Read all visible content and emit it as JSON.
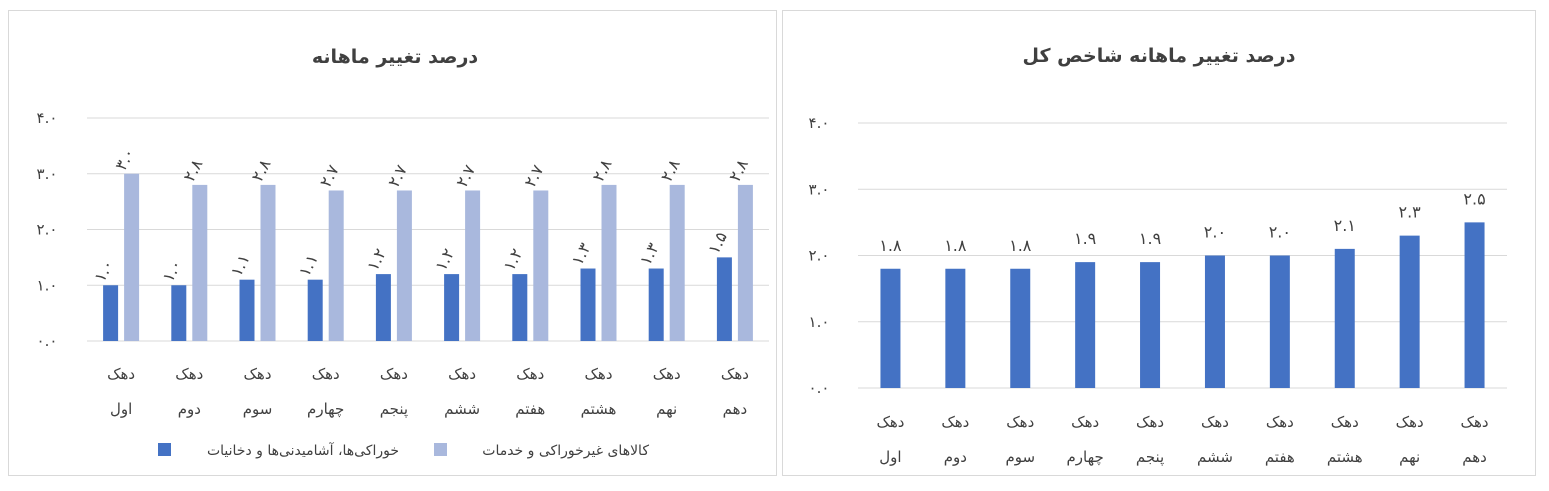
{
  "chart_data": [
    {
      "type": "bar",
      "title": "درصد تغییر ماهانه",
      "categories": [
        [
          "دهک",
          "اول"
        ],
        [
          "دهک",
          "دوم"
        ],
        [
          "دهک",
          "سوم"
        ],
        [
          "دهک",
          "چهارم"
        ],
        [
          "دهک",
          "پنجم"
        ],
        [
          "دهک",
          "ششم"
        ],
        [
          "دهک",
          "هفتم"
        ],
        [
          "دهک",
          "هشتم"
        ],
        [
          "دهک",
          "نهم"
        ],
        [
          "دهک",
          "دهم"
        ]
      ],
      "yticks": [
        "۰.۰",
        "۱.۰",
        "۲.۰",
        "۳.۰",
        "۴.۰"
      ],
      "ylim": [
        0,
        4
      ],
      "grid": true,
      "legend": "bottom",
      "series": [
        {
          "name": "خوراکی‌ها، آشامیدنی‌ها و دخانیات",
          "color": "#4472c4",
          "values": [
            1.0,
            1.0,
            1.1,
            1.1,
            1.2,
            1.2,
            1.2,
            1.3,
            1.3,
            1.5
          ],
          "labels": [
            "۱.۰",
            "۱.۰",
            "۱.۱",
            "۱.۱",
            "۱.۲",
            "۱.۲",
            "۱.۲",
            "۱.۳",
            "۱.۳",
            "۱.۵"
          ]
        },
        {
          "name": "کالاهای غیرخوراکی و خدمات",
          "color": "#a9b8dd",
          "values": [
            3.0,
            2.8,
            2.8,
            2.7,
            2.7,
            2.7,
            2.7,
            2.8,
            2.8,
            2.8
          ],
          "labels": [
            "۳.۰",
            "۲.۸",
            "۲.۸",
            "۲.۷",
            "۲.۷",
            "۲.۷",
            "۲.۷",
            "۲.۸",
            "۲.۸",
            "۲.۸"
          ]
        }
      ]
    },
    {
      "type": "bar",
      "title": "درصد تغییر ماهانه شاخص کل",
      "categories": [
        [
          "دهک",
          "اول"
        ],
        [
          "دهک",
          "دوم"
        ],
        [
          "دهک",
          "سوم"
        ],
        [
          "دهک",
          "چهارم"
        ],
        [
          "دهک",
          "پنجم"
        ],
        [
          "دهک",
          "ششم"
        ],
        [
          "دهک",
          "هفتم"
        ],
        [
          "دهک",
          "هشتم"
        ],
        [
          "دهک",
          "نهم"
        ],
        [
          "دهک",
          "دهم"
        ]
      ],
      "yticks": [
        "۰.۰",
        "۱.۰",
        "۲.۰",
        "۳.۰",
        "۴.۰"
      ],
      "ylim": [
        0,
        4
      ],
      "grid": true,
      "series": [
        {
          "color": "#4472c4",
          "values": [
            1.8,
            1.8,
            1.8,
            1.9,
            1.9,
            2.0,
            2.0,
            2.1,
            2.3,
            2.5
          ],
          "labels": [
            "۱.۸",
            "۱.۸",
            "۱.۸",
            "۱.۹",
            "۱.۹",
            "۲.۰",
            "۲.۰",
            "۲.۱",
            "۲.۳",
            "۲.۵"
          ]
        }
      ]
    }
  ]
}
